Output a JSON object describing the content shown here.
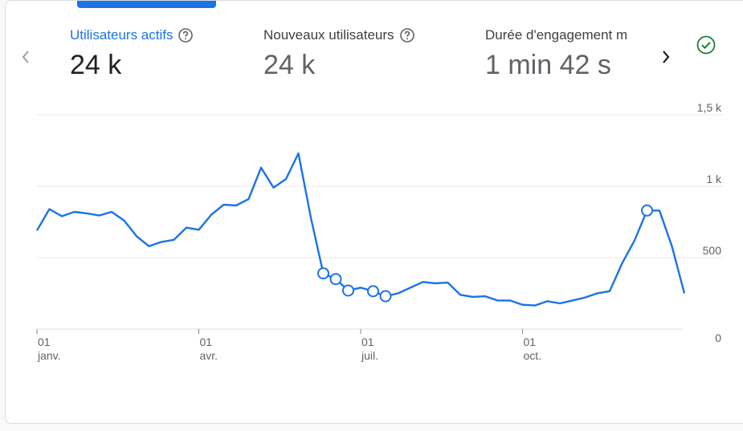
{
  "tabs": [
    {
      "label": "Utilisateurs actifs",
      "value": "24 k",
      "active": true
    },
    {
      "label": "Nouveaux utilisateurs",
      "value": "24 k",
      "active": false
    },
    {
      "label": "Durée d'engagement m",
      "value": "1 min 42 s",
      "active": false
    }
  ],
  "colors": {
    "accent": "#1a73e8",
    "grid": "#e8eaed",
    "status_ok": "#188038"
  },
  "icons": {
    "prev": "chevron-left-icon",
    "next": "chevron-right-icon",
    "help": "help-circle-icon",
    "check": "check-circle-icon"
  },
  "chart_data": {
    "type": "line",
    "series": [
      {
        "values": [
          690,
          840,
          790,
          820,
          810,
          795,
          820,
          760,
          650,
          580,
          610,
          625,
          710,
          695,
          800,
          870,
          865,
          910,
          1130,
          990,
          1050,
          1230,
          780,
          390,
          350,
          270,
          290,
          265,
          230,
          250,
          290,
          330,
          320,
          325,
          240,
          225,
          230,
          200,
          200,
          170,
          165,
          195,
          180,
          200,
          220,
          250,
          265,
          460,
          620,
          830,
          830,
          580,
          250
        ],
        "anomalies": [
          23,
          24,
          25,
          27,
          28,
          49
        ]
      }
    ],
    "ylim": [
      0,
      1500
    ],
    "y_ticks": [
      {
        "value": 0,
        "label": "0"
      },
      {
        "value": 500,
        "label": "500"
      },
      {
        "value": 1000,
        "label": "1 k"
      },
      {
        "value": 1500,
        "label": "1,5 k"
      }
    ],
    "x_ticks": [
      {
        "index": 0,
        "day": "01",
        "month": "janv."
      },
      {
        "index": 13,
        "day": "01",
        "month": "avr."
      },
      {
        "index": 26,
        "day": "01",
        "month": "juil."
      },
      {
        "index": 39,
        "day": "01",
        "month": "oct."
      }
    ],
    "grid": true
  }
}
